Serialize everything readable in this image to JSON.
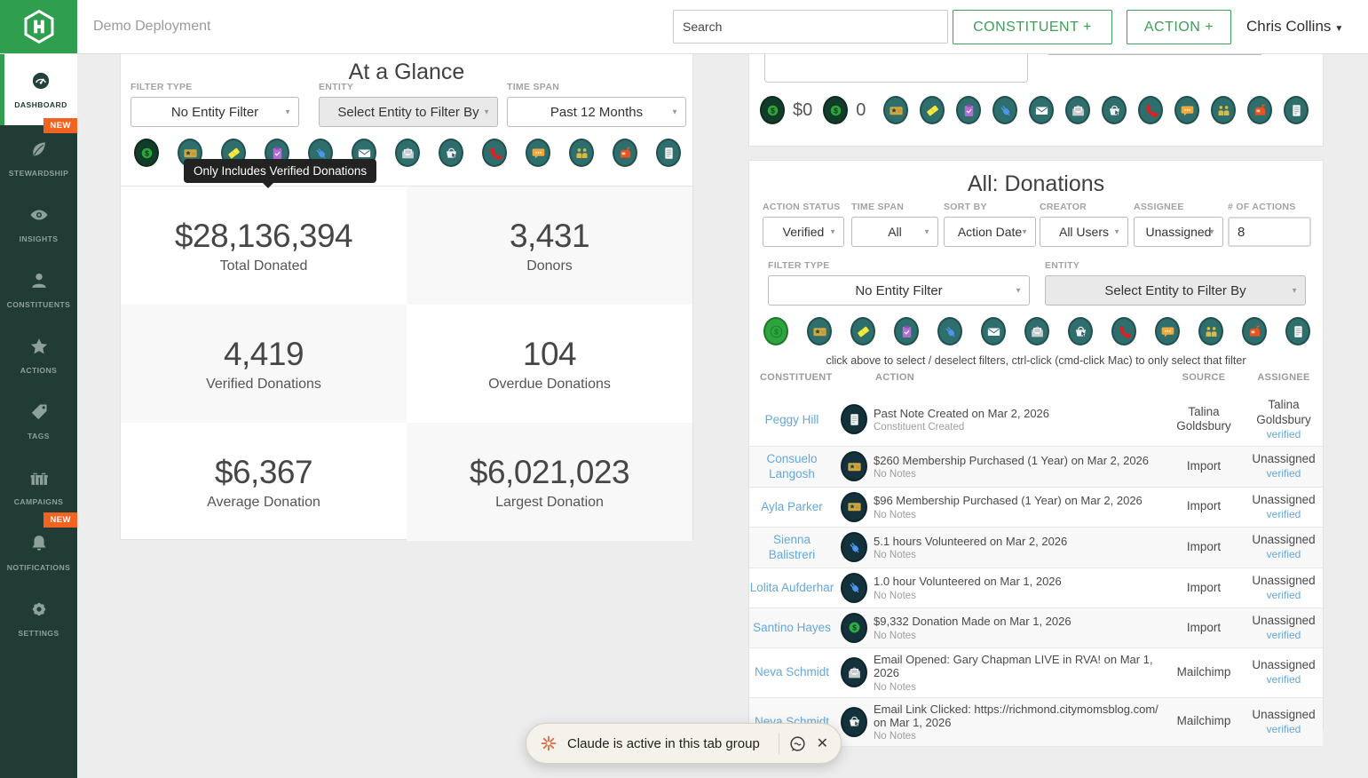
{
  "header": {
    "org_name": "Demo Deployment",
    "search_placeholder": "Search",
    "constituent_button": "CONSTITUENT +",
    "action_button": "ACTION +",
    "user_name": "Chris Collins"
  },
  "sidebar": {
    "items": [
      {
        "label": "DASHBOARD",
        "icon": "dashboard-gauge-icon",
        "active": true,
        "badge": null
      },
      {
        "label": "STEWARDSHIP",
        "icon": "leaf-icon",
        "active": false,
        "badge": "NEW"
      },
      {
        "label": "INSIGHTS",
        "icon": "eye-icon",
        "active": false,
        "badge": null
      },
      {
        "label": "CONSTITUENTS",
        "icon": "person-icon",
        "active": false,
        "badge": null
      },
      {
        "label": "ACTIONS",
        "icon": "star-icon",
        "active": false,
        "badge": null
      },
      {
        "label": "TAGS",
        "icon": "tag-icon",
        "active": false,
        "badge": null
      },
      {
        "label": "CAMPAIGNS",
        "icon": "gifts-icon",
        "active": false,
        "badge": null
      },
      {
        "label": "NOTIFICATIONS",
        "icon": "bell-icon",
        "active": false,
        "badge": "NEW"
      },
      {
        "label": "SETTINGS",
        "icon": "gear-icon",
        "active": false,
        "badge": null
      }
    ]
  },
  "at_a_glance": {
    "title": "At a Glance",
    "filters": [
      {
        "label": "FILTER TYPE",
        "value": "No Entity Filter",
        "disabled": false
      },
      {
        "label": "ENTITY",
        "value": "Select Entity to Filter By",
        "disabled": true
      },
      {
        "label": "TIME SPAN",
        "value": "Past 12 Months",
        "disabled": false
      }
    ],
    "filter_icons": [
      "donation-icon-dark",
      "membership-icon",
      "ticket-icon",
      "clipboard-icon",
      "volunteer-plug-icon",
      "email-icon",
      "email-opened-icon",
      "purchase-basket-icon",
      "phone-call-icon",
      "chat-icon",
      "people-meeting-icon",
      "mailbox-icon",
      "note-icon"
    ],
    "tooltip": "Only Includes Verified Donations",
    "stats": [
      {
        "value": "$28,136,394",
        "label": "Total Donated"
      },
      {
        "value": "3,431",
        "label": "Donors"
      },
      {
        "value": "4,419",
        "label": "Verified Donations"
      },
      {
        "value": "104",
        "label": "Overdue Donations"
      },
      {
        "value": "$6,367",
        "label": "Average Donation"
      },
      {
        "value": "$6,021,023",
        "label": "Largest Donation"
      }
    ]
  },
  "top_right_panel": {
    "counts": [
      {
        "icon": "donation-icon-dark",
        "value": "$0"
      },
      {
        "icon": "donation-icon-dark",
        "value": "0"
      }
    ],
    "filter_icons": [
      "membership-icon",
      "ticket-icon",
      "clipboard-icon",
      "volunteer-plug-icon",
      "email-icon",
      "email-opened-icon",
      "purchase-basket-icon",
      "phone-call-icon",
      "chat-icon",
      "people-meeting-icon",
      "mailbox-icon",
      "note-icon"
    ]
  },
  "donations_panel": {
    "title": "All: Donations",
    "filters_row1": [
      {
        "label": "ACTION STATUS",
        "value": "Verified",
        "type": "select"
      },
      {
        "label": "TIME SPAN",
        "value": "All",
        "type": "select"
      },
      {
        "label": "SORT BY",
        "value": "Action Date",
        "type": "select"
      },
      {
        "label": "CREATOR",
        "value": "All Users",
        "type": "select"
      },
      {
        "label": "ASSIGNEE",
        "value": "Unassigned",
        "type": "select"
      },
      {
        "label": "# OF ACTIONS",
        "value": "8",
        "type": "input"
      }
    ],
    "filters_row2": [
      {
        "label": "FILTER TYPE",
        "value": "No Entity Filter",
        "disabled": false
      },
      {
        "label": "ENTITY",
        "value": "Select Entity to Filter By",
        "disabled": true
      }
    ],
    "filter_icons": [
      "donation-icon-selected",
      "membership-icon",
      "ticket-icon",
      "clipboard-icon",
      "volunteer-plug-icon",
      "email-icon",
      "email-opened-icon",
      "purchase-basket-icon",
      "phone-call-icon",
      "chat-icon",
      "people-meeting-icon",
      "mailbox-icon",
      "note-icon"
    ],
    "helper_text": "click above to select / deselect filters, ctrl-click (cmd-click Mac) to only select that filter",
    "table": {
      "columns": [
        "CONSTITUENT",
        "ACTION",
        "SOURCE",
        "ASSIGNEE"
      ],
      "rows": [
        {
          "constituent": "Peggy Hill",
          "icon": "note-icon",
          "action": "Past Note Created on Mar 2, 2026",
          "note": "Constituent Created",
          "source": "Talina Goldsbury",
          "assignee": "Talina Goldsbury",
          "assignee_link": "verified"
        },
        {
          "constituent": "Consuelo Langosh",
          "icon": "membership-icon",
          "action": "$260 Membership Purchased (1 Year) on Mar 2, 2026",
          "note": "No Notes",
          "source": "Import",
          "assignee": "Unassigned",
          "assignee_link": "verified"
        },
        {
          "constituent": "Ayla Parker",
          "icon": "membership-icon",
          "action": "$96 Membership Purchased (1 Year) on Mar 2, 2026",
          "note": "No Notes",
          "source": "Import",
          "assignee": "Unassigned",
          "assignee_link": "verified"
        },
        {
          "constituent": "Sienna Balistreri",
          "icon": "volunteer-plug-icon",
          "action": "5.1 hours Volunteered on Mar 2, 2026",
          "note": "No Notes",
          "source": "Import",
          "assignee": "Unassigned",
          "assignee_link": "verified"
        },
        {
          "constituent": "Lolita Aufderhar",
          "icon": "volunteer-plug-icon",
          "action": "1.0 hour Volunteered on Mar 1, 2026",
          "note": "No Notes",
          "source": "Import",
          "assignee": "Unassigned",
          "assignee_link": "verified"
        },
        {
          "constituent": "Santino Hayes",
          "icon": "donation-coin-icon",
          "action": "$9,332 Donation Made on Mar 1, 2026",
          "note": "No Notes",
          "source": "Import",
          "assignee": "Unassigned",
          "assignee_link": "verified"
        },
        {
          "constituent": "Neva Schmidt",
          "icon": "email-opened-icon",
          "action": "Email Opened: Gary Chapman LIVE in RVA! on Mar 1, 2026",
          "note": "No Notes",
          "source": "Mailchimp",
          "assignee": "Unassigned",
          "assignee_link": "verified"
        },
        {
          "constituent": "Neva Schmidt",
          "icon": "purchase-basket-icon",
          "action": "Email Link Clicked: https://richmond.citymomsblog.com/ on Mar 1, 2026",
          "note": "No Notes",
          "source": "Mailchimp",
          "assignee": "Unassigned",
          "assignee_link": "verified"
        }
      ]
    }
  },
  "claude_banner": {
    "text": "Claude is active in this tab group"
  },
  "colors": {
    "brand_green": "#2f9e4e",
    "sidebar_bg": "#213b35",
    "badge_orange": "#f26322",
    "teal_icon_bg": "#2e6f6e",
    "dark_green_icon_bg": "#123c2a",
    "selected_green_icon_bg": "#2ca53d",
    "row_icon_bg": "#14323c",
    "link_blue": "#64a8dc",
    "claude_orange": "#d97757"
  }
}
